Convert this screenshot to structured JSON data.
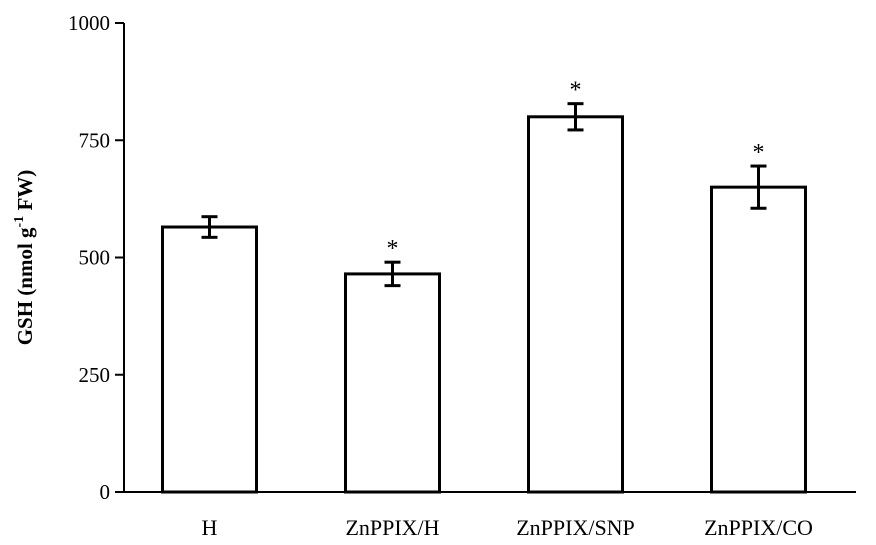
{
  "chart_data": {
    "type": "bar",
    "categories": [
      "H",
      "ZnPPIX/H",
      "ZnPPIX/SNP",
      "ZnPPIX/CO"
    ],
    "values": [
      565,
      465,
      800,
      650
    ],
    "errors": [
      22,
      25,
      28,
      45
    ],
    "significance": [
      "",
      "*",
      "*",
      "*"
    ],
    "ylabel": {
      "main": "GSH (nmol g",
      "sup": "-1",
      "suffix": " FW)"
    },
    "ylim": [
      0,
      1000
    ],
    "yticks": [
      0,
      250,
      500,
      750,
      1000
    ],
    "grid": false,
    "legend": "none"
  }
}
